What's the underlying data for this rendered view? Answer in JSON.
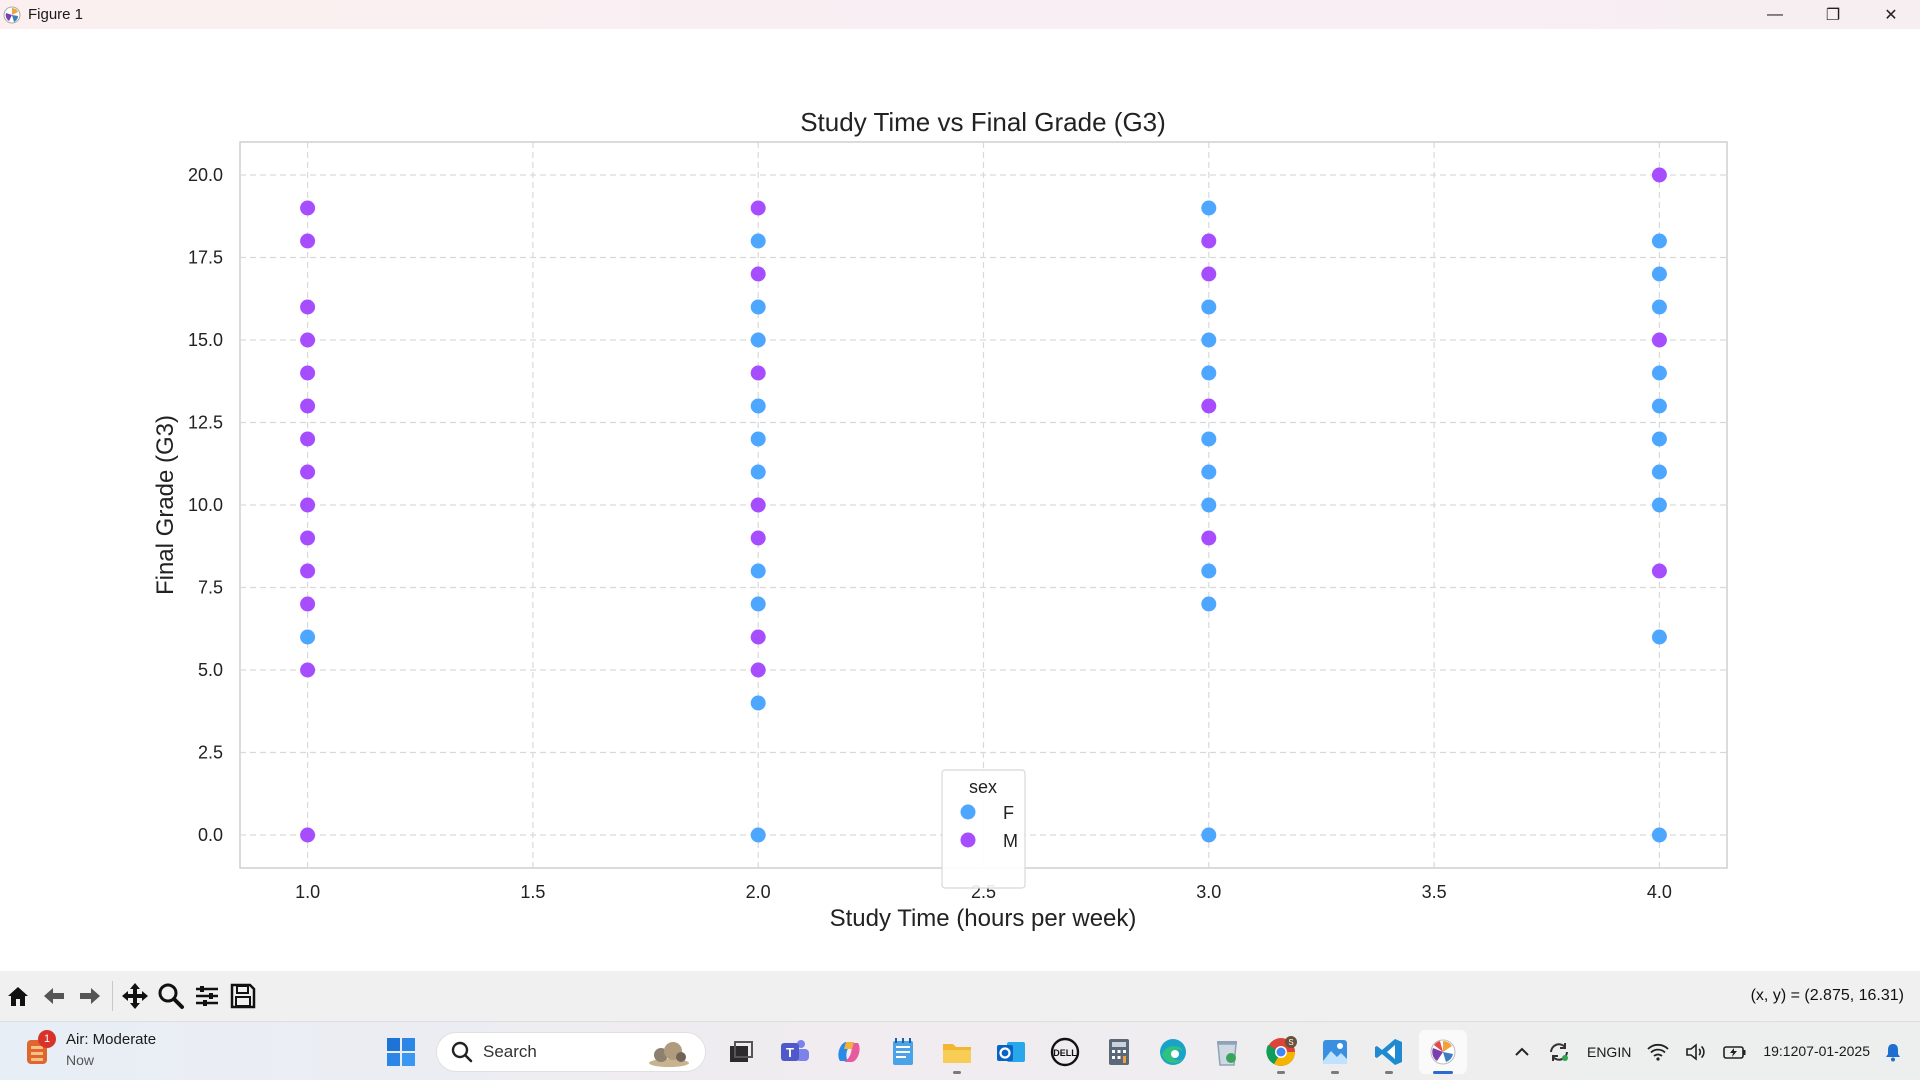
{
  "window": {
    "title": "Figure 1",
    "controls": {
      "minimize": "—",
      "maximize": "❐",
      "close": "✕"
    }
  },
  "chart_data": {
    "type": "scatter",
    "title": "Study Time vs Final Grade (G3)",
    "xlabel": "Study Time (hours per week)",
    "ylabel": "Final Grade (G3)",
    "xlim": [
      0.85,
      4.15
    ],
    "ylim": [
      -1.0,
      21.0
    ],
    "xticks": [
      1.0,
      1.5,
      2.0,
      2.5,
      3.0,
      3.5,
      4.0
    ],
    "xtick_labels": [
      "1.0",
      "1.5",
      "2.0",
      "2.5",
      "3.0",
      "3.5",
      "4.0"
    ],
    "yticks": [
      0.0,
      2.5,
      5.0,
      7.5,
      10.0,
      12.5,
      15.0,
      17.5,
      20.0
    ],
    "ytick_labels": [
      "0.0",
      "2.5",
      "5.0",
      "7.5",
      "10.0",
      "12.5",
      "15.0",
      "17.5",
      "20.0"
    ],
    "grid": true,
    "legend": {
      "title": "sex",
      "position": "lower center"
    },
    "series": [
      {
        "name": "F",
        "color": "#4da6ff",
        "points": [
          [
            1,
            6
          ],
          [
            2,
            0
          ],
          [
            2,
            4
          ],
          [
            2,
            7
          ],
          [
            2,
            8
          ],
          [
            2,
            11
          ],
          [
            2,
            12
          ],
          [
            2,
            13
          ],
          [
            2,
            15
          ],
          [
            2,
            16
          ],
          [
            2,
            18
          ],
          [
            3,
            0
          ],
          [
            3,
            7
          ],
          [
            3,
            8
          ],
          [
            3,
            10
          ],
          [
            3,
            11
          ],
          [
            3,
            12
          ],
          [
            3,
            14
          ],
          [
            3,
            15
          ],
          [
            3,
            16
          ],
          [
            3,
            19
          ],
          [
            4,
            0
          ],
          [
            4,
            6
          ],
          [
            4,
            10
          ],
          [
            4,
            11
          ],
          [
            4,
            12
          ],
          [
            4,
            13
          ],
          [
            4,
            14
          ],
          [
            4,
            16
          ],
          [
            4,
            17
          ],
          [
            4,
            18
          ]
        ]
      },
      {
        "name": "M",
        "color": "#a64dff",
        "points": [
          [
            1,
            0
          ],
          [
            1,
            5
          ],
          [
            1,
            7
          ],
          [
            1,
            8
          ],
          [
            1,
            9
          ],
          [
            1,
            10
          ],
          [
            1,
            11
          ],
          [
            1,
            12
          ],
          [
            1,
            13
          ],
          [
            1,
            14
          ],
          [
            1,
            15
          ],
          [
            1,
            16
          ],
          [
            1,
            18
          ],
          [
            1,
            19
          ],
          [
            2,
            5
          ],
          [
            2,
            6
          ],
          [
            2,
            9
          ],
          [
            2,
            10
          ],
          [
            2,
            14
          ],
          [
            2,
            17
          ],
          [
            2,
            19
          ],
          [
            3,
            9
          ],
          [
            3,
            13
          ],
          [
            3,
            17
          ],
          [
            3,
            18
          ],
          [
            4,
            8
          ],
          [
            4,
            15
          ],
          [
            4,
            20
          ]
        ]
      }
    ]
  },
  "toolbar": {
    "buttons": [
      "home-icon",
      "back-icon",
      "forward-icon",
      "pan-icon",
      "zoom-icon",
      "configure-icon",
      "save-icon"
    ],
    "coordinates": "(x, y) = (2.875, 16.31)"
  },
  "taskbar": {
    "weather": {
      "title": "Air: Moderate",
      "subtitle": "Now",
      "badge": "1"
    },
    "search_label": "Search",
    "apps": [
      "start-icon",
      "search",
      "task-view-icon",
      "teams-icon",
      "copilot-icon",
      "notepad-icon",
      "file-explorer-icon",
      "outlook-icon",
      "dell-icon",
      "calculator-icon",
      "edge-icon",
      "recycle-icon",
      "chrome-icon",
      "photos-icon",
      "vscode-icon",
      "matplotlib-icon"
    ],
    "tray": {
      "lang_line1": "ENG",
      "lang_line2": "IN",
      "time": "19:12",
      "date": "07-01-2025"
    },
    "chrome_badge": "S"
  }
}
